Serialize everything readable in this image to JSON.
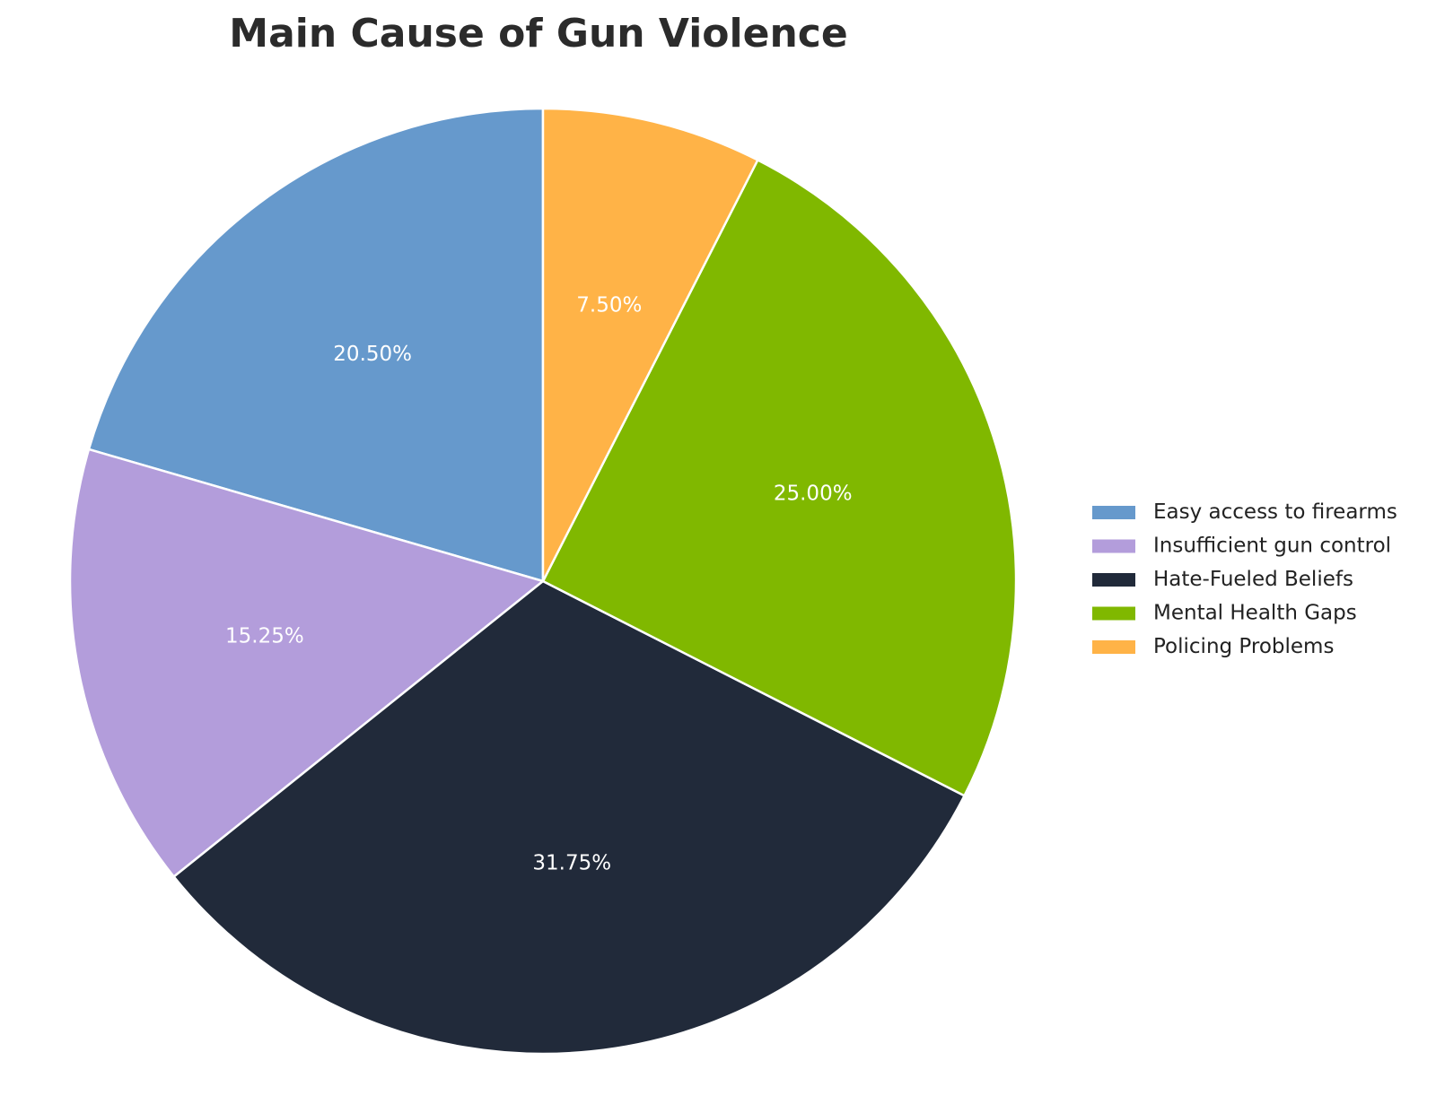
{
  "chart_data": {
    "type": "pie",
    "title": "Main Cause of Gun Violence",
    "categories": [
      "Easy access to firearms",
      "Insufficient gun control",
      "Hate-Fueled Beliefs",
      "Mental Health Gaps",
      "Policing Problems"
    ],
    "values": [
      20.5,
      15.25,
      31.75,
      25.0,
      7.5
    ],
    "value_labels": [
      "20.50%",
      "15.25%",
      "31.75%",
      "25.00%",
      "7.50%"
    ],
    "colors": [
      "#6699cc",
      "#b39ddb",
      "#212a3a",
      "#80b800",
      "#ffb347"
    ],
    "start_angle_deg": 90,
    "direction": "counterclockwise",
    "legend_position": "right"
  }
}
